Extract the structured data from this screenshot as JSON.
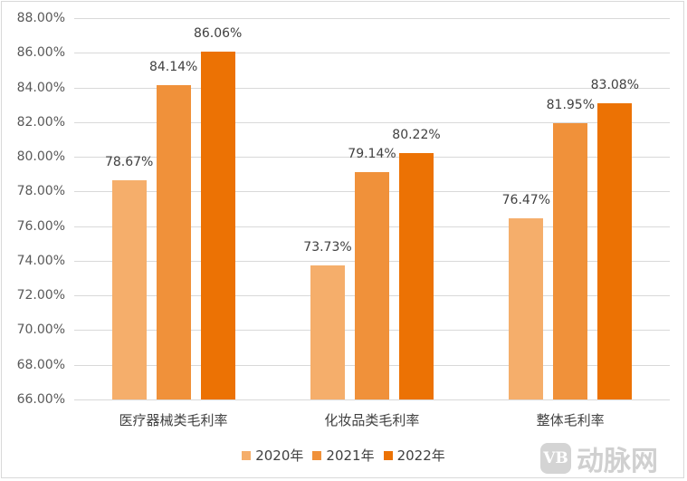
{
  "chart_data": {
    "type": "bar",
    "title": "",
    "xlabel": "",
    "ylabel": "",
    "ylim": [
      66,
      88
    ],
    "yticks": [
      "66.00%",
      "68.00%",
      "70.00%",
      "72.00%",
      "74.00%",
      "76.00%",
      "78.00%",
      "80.00%",
      "82.00%",
      "84.00%",
      "86.00%",
      "88.00%"
    ],
    "grid": true,
    "legend_position": "bottom",
    "categories": [
      "医疗器械类毛利率",
      "化妆品类毛利率",
      "整体毛利率"
    ],
    "series": [
      {
        "name": "2020年",
        "color": "#F5AE6B",
        "values": [
          78.67,
          73.73,
          76.47
        ],
        "labels": [
          "78.67%",
          "73.73%",
          "76.47%"
        ]
      },
      {
        "name": "2021年",
        "color": "#F0913A",
        "values": [
          84.14,
          79.14,
          81.95
        ],
        "labels": [
          "84.14%",
          "79.14%",
          "81.95%"
        ]
      },
      {
        "name": "2022年",
        "color": "#EC7204",
        "values": [
          86.06,
          80.22,
          83.08
        ],
        "labels": [
          "86.06%",
          "80.22%",
          "83.08%"
        ]
      }
    ]
  },
  "watermark": {
    "logo": "VB",
    "text": "动脉网"
  }
}
